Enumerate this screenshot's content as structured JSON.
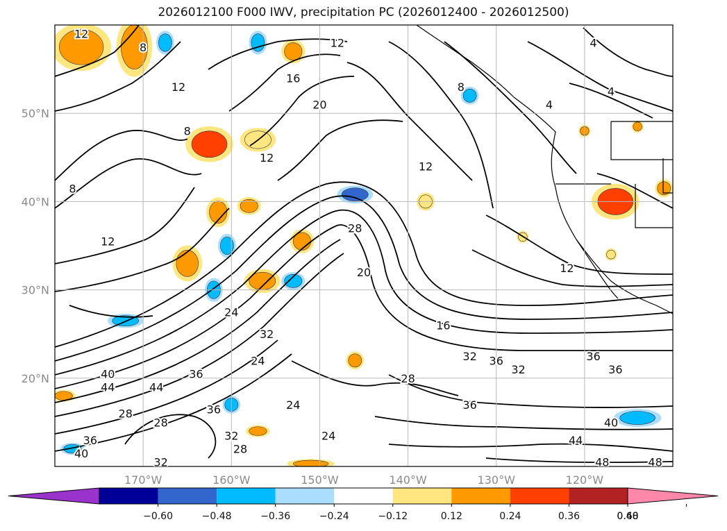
{
  "title": "2026012100 F000 IWV, precipitation PC (2026012400 - 2026012500)",
  "map": {
    "lon_range": [
      -180,
      -110
    ],
    "lat_range": [
      10,
      60
    ],
    "lon_ticks": [
      {
        "value": -170,
        "label": "170°W"
      },
      {
        "value": -160,
        "label": "160°W"
      },
      {
        "value": -150,
        "label": "150°W"
      },
      {
        "value": -140,
        "label": "140°W"
      },
      {
        "value": -130,
        "label": "130°W"
      },
      {
        "value": -120,
        "label": "120°W"
      }
    ],
    "lat_ticks": [
      {
        "value": 50,
        "label": "50°N"
      },
      {
        "value": 40,
        "label": "40°N"
      },
      {
        "value": 30,
        "label": "30°N"
      },
      {
        "value": 20,
        "label": "20°N"
      }
    ],
    "gridlines": true,
    "contour_labels": [
      {
        "text": "12",
        "lon": -177,
        "lat": 59
      },
      {
        "text": "8",
        "lon": -170,
        "lat": 57.5
      },
      {
        "text": "12",
        "lon": -148,
        "lat": 58
      },
      {
        "text": "4",
        "lon": -119,
        "lat": 58
      },
      {
        "text": "12",
        "lon": -166,
        "lat": 53
      },
      {
        "text": "16",
        "lon": -153,
        "lat": 54
      },
      {
        "text": "20",
        "lon": -150,
        "lat": 51
      },
      {
        "text": "4",
        "lon": -117,
        "lat": 52.5
      },
      {
        "text": "8",
        "lon": -134,
        "lat": 53
      },
      {
        "text": "4",
        "lon": -124,
        "lat": 51
      },
      {
        "text": "8",
        "lon": -165,
        "lat": 48
      },
      {
        "text": "12",
        "lon": -156,
        "lat": 45
      },
      {
        "text": "8",
        "lon": -178,
        "lat": 41.5
      },
      {
        "text": "12",
        "lon": -138,
        "lat": 44
      },
      {
        "text": "12",
        "lon": -174,
        "lat": 35.5
      },
      {
        "text": "28",
        "lon": -146,
        "lat": 37
      },
      {
        "text": "20",
        "lon": -145,
        "lat": 32
      },
      {
        "text": "12",
        "lon": -122,
        "lat": 32.5
      },
      {
        "text": "16",
        "lon": -136,
        "lat": 26
      },
      {
        "text": "24",
        "lon": -160,
        "lat": 27.5
      },
      {
        "text": "32",
        "lon": -156,
        "lat": 25
      },
      {
        "text": "32",
        "lon": -133,
        "lat": 22.5
      },
      {
        "text": "36",
        "lon": -130,
        "lat": 22
      },
      {
        "text": "32",
        "lon": -127.5,
        "lat": 21
      },
      {
        "text": "36",
        "lon": -119,
        "lat": 22.5
      },
      {
        "text": "36",
        "lon": -116.5,
        "lat": 21
      },
      {
        "text": "24",
        "lon": -157,
        "lat": 22
      },
      {
        "text": "40",
        "lon": -174,
        "lat": 20.5
      },
      {
        "text": "44",
        "lon": -174,
        "lat": 19
      },
      {
        "text": "44",
        "lon": -168.5,
        "lat": 19
      },
      {
        "text": "36",
        "lon": -164,
        "lat": 20.5
      },
      {
        "text": "28",
        "lon": -140,
        "lat": 20
      },
      {
        "text": "24",
        "lon": -153,
        "lat": 17
      },
      {
        "text": "36",
        "lon": -162,
        "lat": 16.5
      },
      {
        "text": "36",
        "lon": -133,
        "lat": 17
      },
      {
        "text": "28",
        "lon": -172,
        "lat": 16
      },
      {
        "text": "28",
        "lon": -168,
        "lat": 15
      },
      {
        "text": "40",
        "lon": -117,
        "lat": 15
      },
      {
        "text": "36",
        "lon": -176,
        "lat": 13
      },
      {
        "text": "32",
        "lon": -160,
        "lat": 13.5
      },
      {
        "text": "24",
        "lon": -149,
        "lat": 13.5
      },
      {
        "text": "28",
        "lon": -159,
        "lat": 12
      },
      {
        "text": "44",
        "lon": -121,
        "lat": 13
      },
      {
        "text": "40",
        "lon": -177,
        "lat": 11.5
      },
      {
        "text": "32",
        "lon": -168,
        "lat": 10.5
      },
      {
        "text": "48",
        "lon": -118,
        "lat": 10.5
      },
      {
        "text": "48",
        "lon": -112,
        "lat": 10.5
      }
    ]
  },
  "precip_patches": [
    {
      "lon": -177,
      "lat": 57.5,
      "w": 5,
      "h": 4,
      "val": 0.3
    },
    {
      "lon": -171,
      "lat": 57.5,
      "w": 3,
      "h": 5,
      "val": 0.3
    },
    {
      "lon": -167.5,
      "lat": 58,
      "w": 1.5,
      "h": 2,
      "val": -0.3
    },
    {
      "lon": -157,
      "lat": 58,
      "w": 1.5,
      "h": 2,
      "val": -0.3
    },
    {
      "lon": -153,
      "lat": 57,
      "w": 2,
      "h": 2,
      "val": 0.3
    },
    {
      "lon": -162.5,
      "lat": 46.5,
      "w": 4,
      "h": 3,
      "val": 0.4
    },
    {
      "lon": -157,
      "lat": 47,
      "w": 3,
      "h": 2,
      "val": 0.18
    },
    {
      "lon": -146,
      "lat": 40.8,
      "w": 3,
      "h": 1.5,
      "val": -0.4
    },
    {
      "lon": -161.5,
      "lat": 38.8,
      "w": 2,
      "h": 2.5,
      "val": 0.35
    },
    {
      "lon": -158,
      "lat": 39.5,
      "w": 2,
      "h": 1.5,
      "val": 0.3
    },
    {
      "lon": -165,
      "lat": 33,
      "w": 2.5,
      "h": 3,
      "val": 0.35
    },
    {
      "lon": -160.5,
      "lat": 35,
      "w": 1.5,
      "h": 2,
      "val": -0.3
    },
    {
      "lon": -162,
      "lat": 30,
      "w": 1.5,
      "h": 2,
      "val": -0.3
    },
    {
      "lon": -156.5,
      "lat": 31,
      "w": 3,
      "h": 2,
      "val": 0.35
    },
    {
      "lon": -152,
      "lat": 35.5,
      "w": 2,
      "h": 2,
      "val": 0.3
    },
    {
      "lon": -153,
      "lat": 31,
      "w": 2,
      "h": 1.5,
      "val": -0.3
    },
    {
      "lon": -172,
      "lat": 26.5,
      "w": 3,
      "h": 1.2,
      "val": -0.3
    },
    {
      "lon": -116.5,
      "lat": 40,
      "w": 4,
      "h": 3,
      "val": 0.4
    },
    {
      "lon": -111,
      "lat": 41.5,
      "w": 1.5,
      "h": 1.5,
      "val": 0.3
    },
    {
      "lon": -114,
      "lat": 15.5,
      "w": 4,
      "h": 1.5,
      "val": -0.3
    },
    {
      "lon": -133,
      "lat": 52,
      "w": 1.5,
      "h": 1.5,
      "val": -0.3
    },
    {
      "lon": -146,
      "lat": 22,
      "w": 1.5,
      "h": 1.5,
      "val": 0.3
    },
    {
      "lon": -138,
      "lat": 40,
      "w": 1.5,
      "h": 1.5,
      "val": 0.18
    },
    {
      "lon": -179,
      "lat": 18,
      "w": 2,
      "h": 1,
      "val": 0.3
    },
    {
      "lon": -160,
      "lat": 17,
      "w": 1.5,
      "h": 1.5,
      "val": -0.3
    },
    {
      "lon": -157,
      "lat": 14,
      "w": 2,
      "h": 1,
      "val": 0.3
    },
    {
      "lon": -151,
      "lat": 10.3,
      "w": 4,
      "h": 0.8,
      "val": 0.3
    },
    {
      "lon": -178,
      "lat": 12,
      "w": 2,
      "h": 1,
      "val": -0.3
    },
    {
      "lon": -120,
      "lat": 48,
      "w": 1,
      "h": 1,
      "val": 0.3
    },
    {
      "lon": -114,
      "lat": 48.5,
      "w": 1,
      "h": 1,
      "val": 0.3
    },
    {
      "lon": -127,
      "lat": 36,
      "w": 1,
      "h": 1,
      "val": 0.18
    },
    {
      "lon": -117,
      "lat": 34,
      "w": 1,
      "h": 1,
      "val": 0.18
    }
  ],
  "colorbar": {
    "colors": [
      "#9933cc",
      "#000099",
      "#3366cc",
      "#00bbff",
      "#aaddff",
      "#ffffff",
      "#ffe680",
      "#ff9900",
      "#ff4000",
      "#b22222",
      "#ff88aa"
    ],
    "ticks": [
      "−0.60",
      "−0.48",
      "−0.36",
      "−0.24",
      "−0.12",
      "0.12",
      "0.24",
      "0.36",
      "0.48",
      "0.60"
    ]
  }
}
